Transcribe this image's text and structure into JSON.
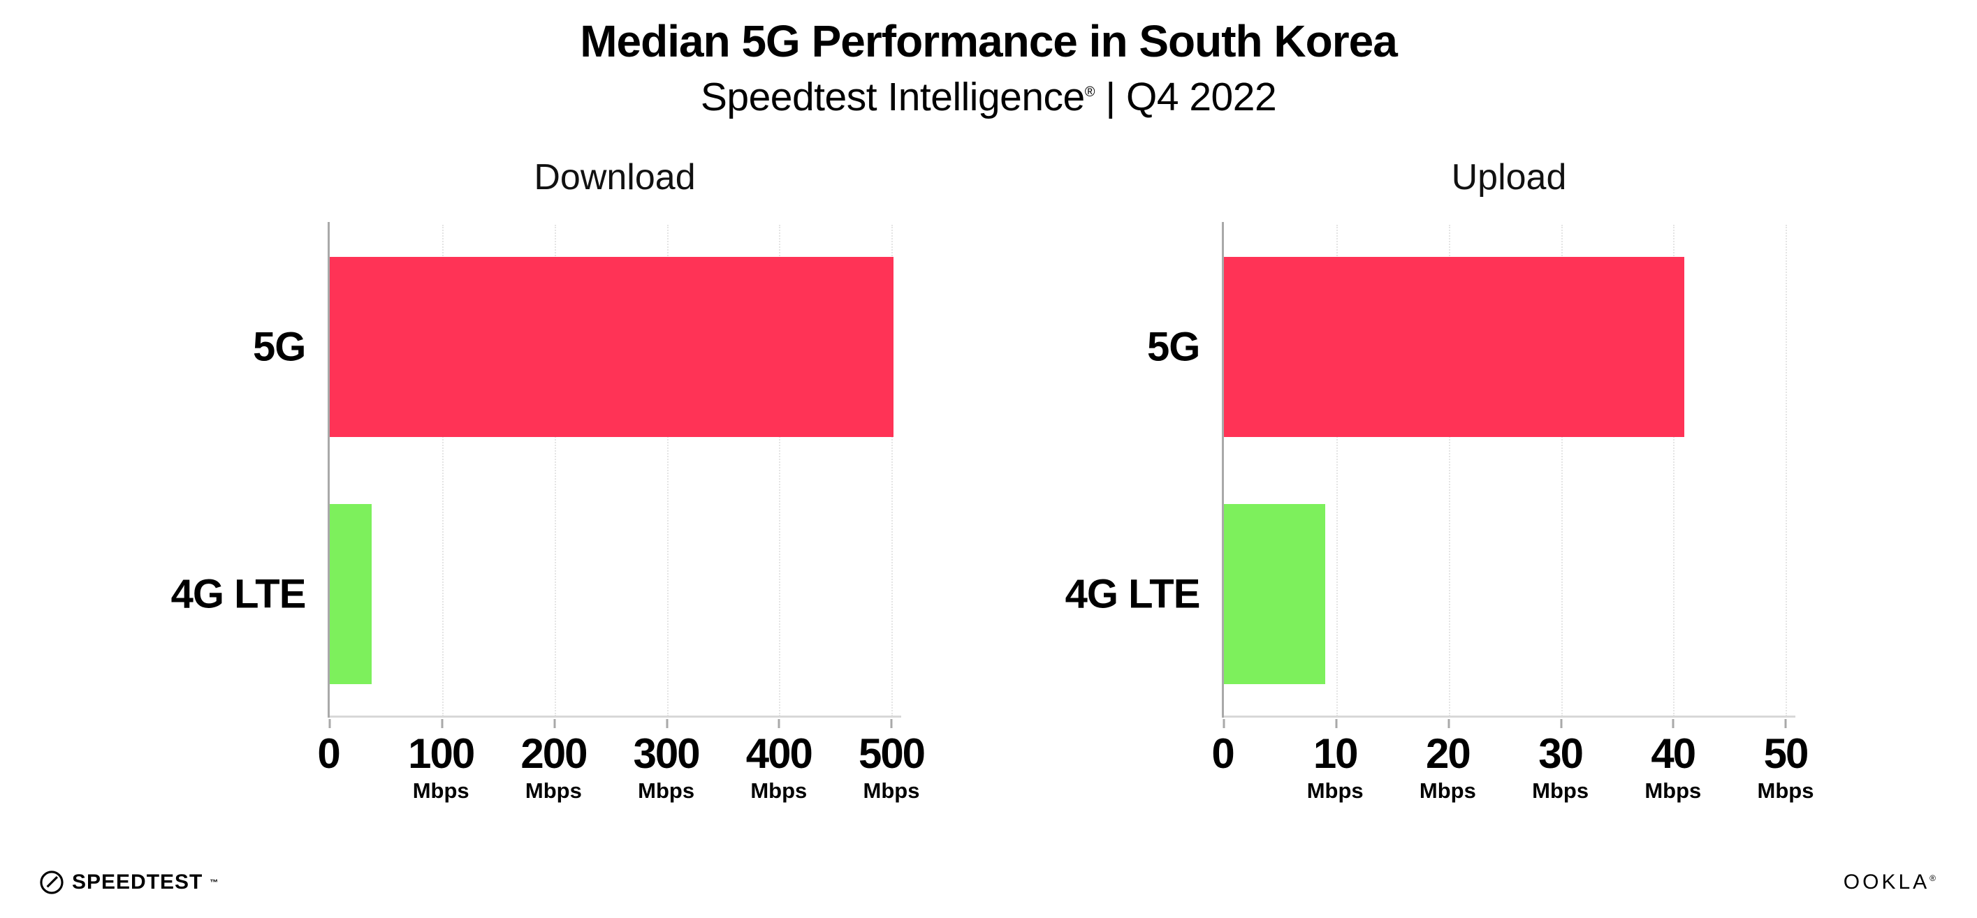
{
  "header": {
    "title": "Median 5G Performance in South Korea",
    "subtitle_brand": "Speedtest Intelligence",
    "subtitle_reg": "®",
    "subtitle_rest": " | Q4 2022"
  },
  "colors": {
    "bar_5g": "#ff3356",
    "bar_4g": "#7df05c",
    "axis_left": "#a9a9a9",
    "axis_bottom": "#d8d8d8",
    "gridline": "#e4e4e4",
    "text": "#000000"
  },
  "chart_data": [
    {
      "type": "bar",
      "orientation": "horizontal",
      "title": "Download",
      "categories": [
        "5G",
        "4G LTE"
      ],
      "values": [
        502,
        37
      ],
      "bar_colors": [
        "#ff3356",
        "#7df05c"
      ],
      "xlim": [
        0,
        500
      ],
      "xticks": [
        0,
        100,
        200,
        300,
        400,
        500
      ],
      "tick_unit": "Mbps",
      "grid": "dotted-vertical",
      "legend": "none"
    },
    {
      "type": "bar",
      "orientation": "horizontal",
      "title": "Upload",
      "categories": [
        "5G",
        "4G LTE"
      ],
      "values": [
        41,
        9
      ],
      "bar_colors": [
        "#ff3356",
        "#7df05c"
      ],
      "xlim": [
        0,
        50
      ],
      "xticks": [
        0,
        10,
        20,
        30,
        40,
        50
      ],
      "tick_unit": "Mbps",
      "grid": "dotted-vertical",
      "legend": "none"
    }
  ],
  "footer": {
    "speedtest_label": "SPEEDTEST",
    "speedtest_mark": "™",
    "ookla_label": "OOKLA",
    "ookla_mark": "®"
  }
}
